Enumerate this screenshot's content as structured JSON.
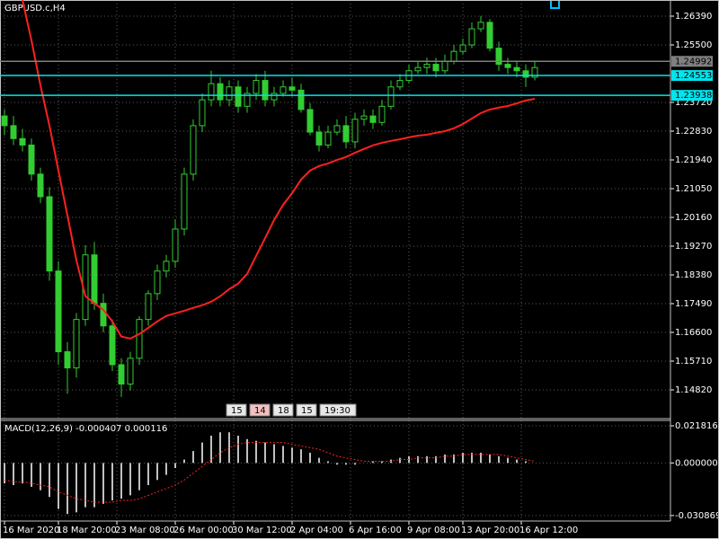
{
  "chart_data": {
    "type": "candlestick",
    "title": "GBPUSD.c,H4",
    "background": "#000000",
    "candle_color": "#32cd32",
    "grid": true,
    "open": [
      1.233,
      1.23,
      1.226,
      1.224,
      1.215,
      1.208,
      1.185,
      1.16,
      1.155,
      1.17,
      1.19,
      1.175,
      1.168,
      1.156,
      1.15,
      1.158,
      1.17,
      1.178,
      1.185,
      1.188,
      1.198,
      1.215,
      1.23,
      1.238,
      1.243,
      1.238,
      1.242,
      1.236,
      1.24,
      1.244,
      1.238,
      1.24,
      1.242,
      1.241,
      1.235,
      1.228,
      1.224,
      1.228,
      1.23,
      1.225,
      1.232,
      1.233,
      1.231,
      1.236,
      1.242,
      1.244,
      1.247,
      1.248,
      1.249,
      1.247,
      1.25,
      1.253,
      1.255,
      1.26,
      1.262,
      1.254,
      1.249,
      1.248,
      1.247,
      1.245
    ],
    "high": [
      1.235,
      1.233,
      1.229,
      1.226,
      1.217,
      1.211,
      1.188,
      1.163,
      1.172,
      1.193,
      1.194,
      1.178,
      1.17,
      1.158,
      1.16,
      1.171,
      1.179,
      1.187,
      1.19,
      1.201,
      1.217,
      1.232,
      1.24,
      1.247,
      1.245,
      1.244,
      1.244,
      1.242,
      1.246,
      1.247,
      1.242,
      1.244,
      1.245,
      1.243,
      1.237,
      1.23,
      1.23,
      1.232,
      1.233,
      1.234,
      1.235,
      1.235,
      1.238,
      1.244,
      1.246,
      1.249,
      1.25,
      1.251,
      1.251,
      1.252,
      1.255,
      1.257,
      1.262,
      1.264,
      1.263,
      1.256,
      1.251,
      1.25,
      1.249,
      1.25
    ],
    "low": [
      1.227,
      1.224,
      1.222,
      1.213,
      1.206,
      1.182,
      1.156,
      1.147,
      1.152,
      1.168,
      1.173,
      1.166,
      1.154,
      1.146,
      1.148,
      1.156,
      1.168,
      1.176,
      1.183,
      1.186,
      1.196,
      1.213,
      1.228,
      1.236,
      1.236,
      1.236,
      1.234,
      1.234,
      1.238,
      1.236,
      1.236,
      1.239,
      1.239,
      1.234,
      1.227,
      1.222,
      1.223,
      1.227,
      1.223,
      1.223,
      1.23,
      1.229,
      1.23,
      1.235,
      1.241,
      1.243,
      1.246,
      1.246,
      1.245,
      1.246,
      1.249,
      1.252,
      1.254,
      1.259,
      1.253,
      1.247,
      1.246,
      1.245,
      1.242,
      1.244
    ],
    "close": [
      1.23,
      1.226,
      1.224,
      1.215,
      1.208,
      1.185,
      1.16,
      1.155,
      1.17,
      1.19,
      1.175,
      1.168,
      1.156,
      1.15,
      1.158,
      1.17,
      1.178,
      1.185,
      1.188,
      1.198,
      1.215,
      1.23,
      1.238,
      1.243,
      1.238,
      1.242,
      1.236,
      1.24,
      1.244,
      1.238,
      1.24,
      1.242,
      1.241,
      1.235,
      1.228,
      1.224,
      1.228,
      1.23,
      1.225,
      1.232,
      1.233,
      1.231,
      1.236,
      1.242,
      1.244,
      1.247,
      1.248,
      1.249,
      1.247,
      1.25,
      1.253,
      1.255,
      1.26,
      1.262,
      1.254,
      1.249,
      1.248,
      1.247,
      1.245,
      1.248
    ],
    "moving_average": {
      "color": "#ff2020",
      "values": [
        null,
        null,
        1.2689,
        1.2564,
        1.2425,
        1.23,
        1.2161,
        1.2022,
        1.1883,
        1.1772,
        1.175,
        1.173,
        1.1694,
        1.1647,
        1.1641,
        1.1655,
        1.1674,
        1.1694,
        1.1711,
        1.1719,
        1.1727,
        1.1736,
        1.1744,
        1.1755,
        1.1772,
        1.1794,
        1.1811,
        1.1841,
        1.1897,
        1.1952,
        1.2008,
        1.2055,
        1.2091,
        1.2133,
        1.2161,
        1.2175,
        1.2183,
        1.2194,
        1.2203,
        1.2216,
        1.2228,
        1.2239,
        1.2247,
        1.2253,
        1.2258,
        1.2264,
        1.2269,
        1.2272,
        1.2278,
        1.2283,
        1.2292,
        1.2305,
        1.2322,
        1.2339,
        1.235,
        1.2356,
        1.2361,
        1.2369,
        1.2378,
        1.2383
      ]
    },
    "ylim": [
      1.1393,
      1.26891
    ],
    "yticks": [
      {
        "value": 1.2639,
        "label": "1.26390"
      },
      {
        "value": 1.255,
        "label": "1.25500"
      },
      {
        "value": 1.2372,
        "label": "1.23720"
      },
      {
        "value": 1.2283,
        "label": "1.22830"
      },
      {
        "value": 1.2194,
        "label": "1.21940"
      },
      {
        "value": 1.2105,
        "label": "1.21050"
      },
      {
        "value": 1.2016,
        "label": "1.20160"
      },
      {
        "value": 1.1927,
        "label": "1.19270"
      },
      {
        "value": 1.1838,
        "label": "1.18380"
      },
      {
        "value": 1.1749,
        "label": "1.17490"
      },
      {
        "value": 1.166,
        "label": "1.16600"
      },
      {
        "value": 1.1571,
        "label": "1.15710"
      },
      {
        "value": 1.1482,
        "label": "1.14820"
      }
    ],
    "levels": [
      {
        "value": 1.24992,
        "color": "#808080"
      },
      {
        "value": 1.24553,
        "color": "#00e5ee"
      },
      {
        "value": 1.23938,
        "color": "#00e5ee"
      }
    ],
    "xticks": [
      {
        "value": 0,
        "label": "16 Mar 2020"
      },
      {
        "value": 6,
        "label": "18 Mar 20:00"
      },
      {
        "value": 12.5,
        "label": "23 Mar 08:00"
      },
      {
        "value": 19,
        "label": "26 Mar 00:00"
      },
      {
        "value": 25.5,
        "label": "30 Mar 12:00"
      },
      {
        "value": 32,
        "label": "2 Apr 04:00"
      },
      {
        "value": 38.5,
        "label": "6 Apr 16:00"
      },
      {
        "value": 45,
        "label": "9 Apr 08:00"
      },
      {
        "value": 51,
        "label": "13 Apr 20:00"
      },
      {
        "value": 57.5,
        "label": "16 Apr 12:00"
      }
    ],
    "time_markers": [
      "15",
      "14",
      "18",
      "15",
      "19:30"
    ],
    "macd": {
      "title": "MACD(12,26,9) -0.000407 0.000116",
      "histogram_color": "#c0c0c0",
      "signal_color": "#ff2020",
      "histogram": [
        -0.012,
        -0.013,
        -0.012,
        -0.014,
        -0.016,
        -0.02,
        -0.027,
        -0.03,
        -0.029,
        -0.026,
        -0.026,
        -0.024,
        -0.022,
        -0.021,
        -0.019,
        -0.016,
        -0.013,
        -0.01,
        -0.007,
        -0.003,
        0.002,
        0.007,
        0.012,
        0.016,
        0.018,
        0.018,
        0.016,
        0.014,
        0.013,
        0.012,
        0.011,
        0.01,
        0.009,
        0.008,
        0.006,
        0.003,
        0.001,
        -0.001,
        -0.001,
        -0.001,
        0,
        0.001,
        0.001,
        0.002,
        0.003,
        0.004,
        0.004,
        0.004,
        0.004,
        0.005,
        0.005,
        0.006,
        0.006,
        0.006,
        0.005,
        0.004,
        0.003,
        0.002,
        0.001,
        0
      ],
      "signal": [
        -0.01,
        -0.011,
        -0.011,
        -0.012,
        -0.013,
        -0.014,
        -0.017,
        -0.019,
        -0.021,
        -0.022,
        -0.023,
        -0.023,
        -0.023,
        -0.022,
        -0.022,
        -0.021,
        -0.019,
        -0.017,
        -0.015,
        -0.013,
        -0.01,
        -0.006,
        -0.002,
        0.002,
        0.006,
        0.009,
        0.011,
        0.012,
        0.012,
        0.012,
        0.012,
        0.012,
        0.011,
        0.01,
        0.009,
        0.008,
        0.006,
        0.004,
        0.003,
        0.002,
        0.001,
        0.001,
        0.001,
        0.001,
        0.002,
        0.002,
        0.003,
        0.003,
        0.003,
        0.004,
        0.004,
        0.005,
        0.005,
        0.005,
        0.005,
        0.005,
        0.004,
        0.003,
        0.002,
        0.001
      ],
      "ylim": [
        -0.0341,
        0.0255
      ],
      "yticks": [
        0.021816,
        {
          "value": 0,
          "label": "0.000000"
        },
        -0.030869
      ]
    }
  }
}
